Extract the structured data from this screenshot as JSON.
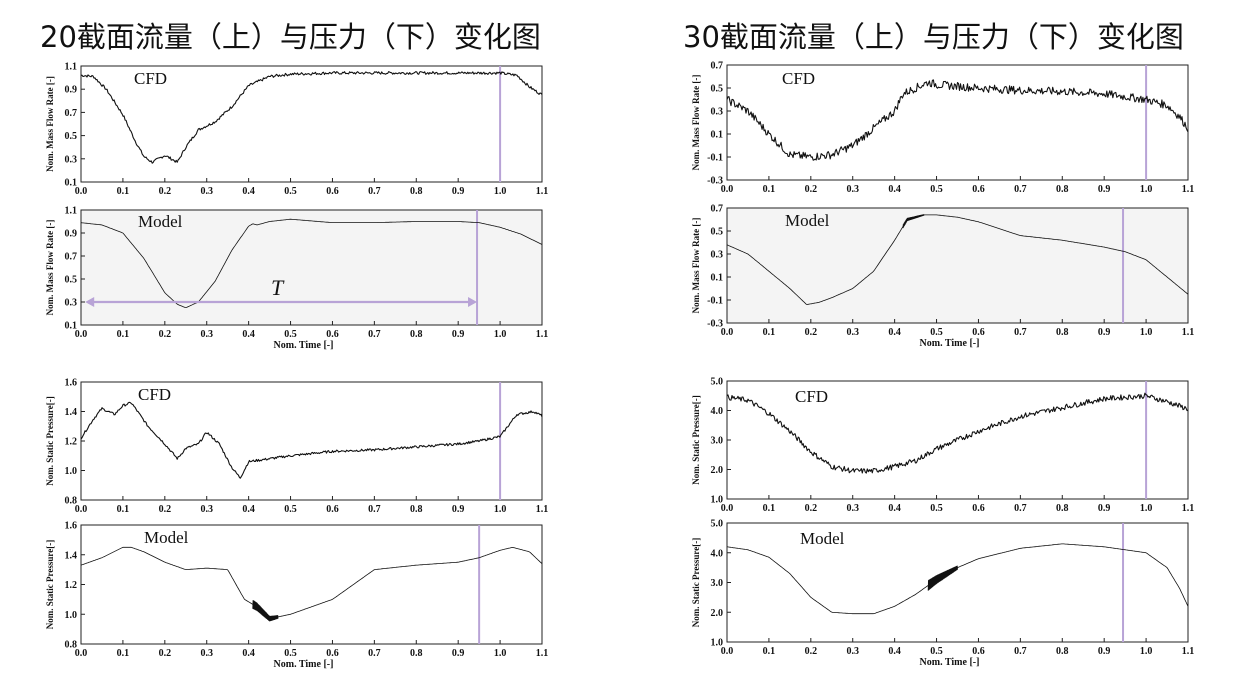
{
  "titles": {
    "left": "20截面流量（上）与压力（下）变化图",
    "right": "30截面流量（上）与压力（下）变化图"
  },
  "colors": {
    "marker": "#b8a3d6",
    "shade": "#f4f4f4",
    "line": "#111111"
  },
  "chart_data": [
    {
      "id": "s20-flow-cfd",
      "type": "line",
      "label": "CFD",
      "ylabel": "Nom. Mass Flow Rate [-]",
      "xlabel": "",
      "xlim": [
        0.0,
        1.1
      ],
      "ylim": [
        0.1,
        1.1
      ],
      "shaded": false,
      "xticks": [
        "0.0",
        "0.1",
        "0.2",
        "0.3",
        "0.4",
        "0.5",
        "0.6",
        "0.7",
        "0.8",
        "0.9",
        "1.0",
        "1.1"
      ],
      "yticks": [
        "0.1",
        "0.3",
        "0.5",
        "0.7",
        "0.9",
        "1.1"
      ],
      "marker_x": 1.0,
      "noise": 0.012,
      "x": [
        0,
        0.03,
        0.06,
        0.1,
        0.13,
        0.15,
        0.17,
        0.2,
        0.23,
        0.25,
        0.28,
        0.32,
        0.36,
        0.4,
        0.45,
        0.5,
        0.6,
        0.7,
        0.8,
        0.9,
        1.0,
        1.04,
        1.07,
        1.1
      ],
      "y": [
        1.02,
        1.01,
        0.9,
        0.68,
        0.45,
        0.32,
        0.27,
        0.33,
        0.27,
        0.4,
        0.55,
        0.62,
        0.75,
        0.93,
        1.01,
        1.03,
        1.04,
        1.04,
        1.04,
        1.04,
        1.04,
        1.02,
        0.92,
        0.85
      ]
    },
    {
      "id": "s20-flow-model",
      "type": "line",
      "label": "Model",
      "ylabel": "Nom. Mass Flow Rate [-]",
      "xlabel": "Nom. Time [-]",
      "xlim": [
        0.0,
        1.1
      ],
      "ylim": [
        0.1,
        1.1
      ],
      "shaded": true,
      "xticks": [
        "0.0",
        "0.1",
        "0.2",
        "0.3",
        "0.4",
        "0.5",
        "0.6",
        "0.7",
        "0.8",
        "0.9",
        "1.0",
        "1.1"
      ],
      "yticks": [
        "0.1",
        "0.3",
        "0.5",
        "0.7",
        "0.9",
        "1.1"
      ],
      "marker_x": 0.945,
      "period_label": "T",
      "period_arrow": [
        0.01,
        0.945
      ],
      "period_y": 0.3,
      "noise": 0,
      "x": [
        0,
        0.05,
        0.1,
        0.15,
        0.2,
        0.23,
        0.25,
        0.28,
        0.32,
        0.36,
        0.4,
        0.41,
        0.42,
        0.45,
        0.5,
        0.6,
        0.7,
        0.8,
        0.9,
        0.95,
        1.0,
        1.05,
        1.1
      ],
      "y": [
        0.99,
        0.97,
        0.9,
        0.68,
        0.38,
        0.28,
        0.25,
        0.3,
        0.48,
        0.75,
        0.96,
        0.98,
        0.97,
        1.0,
        1.02,
        0.99,
        0.99,
        1.0,
        1.0,
        0.99,
        0.95,
        0.89,
        0.8
      ]
    },
    {
      "id": "s20-pressure-cfd",
      "type": "line",
      "label": "CFD",
      "ylabel": "Nom. Static Pressure[-]",
      "xlabel": "",
      "xlim": [
        0.0,
        1.1
      ],
      "ylim": [
        0.8,
        1.6
      ],
      "shaded": false,
      "xticks": [
        "0.0",
        "0.1",
        "0.2",
        "0.3",
        "0.4",
        "0.5",
        "0.6",
        "0.7",
        "0.8",
        "0.9",
        "1.0",
        "1.1"
      ],
      "yticks": [
        "0.8",
        "1.0",
        "1.2",
        "1.4",
        "1.6"
      ],
      "marker_x": 1.0,
      "noise": 0.008,
      "x": [
        0,
        0.03,
        0.05,
        0.08,
        0.1,
        0.12,
        0.14,
        0.16,
        0.2,
        0.23,
        0.25,
        0.28,
        0.3,
        0.33,
        0.36,
        0.38,
        0.4,
        0.45,
        0.5,
        0.6,
        0.7,
        0.8,
        0.9,
        0.95,
        1.0,
        1.04,
        1.08,
        1.1
      ],
      "y": [
        1.22,
        1.35,
        1.42,
        1.38,
        1.44,
        1.46,
        1.38,
        1.3,
        1.18,
        1.08,
        1.15,
        1.18,
        1.26,
        1.18,
        1.02,
        0.95,
        1.06,
        1.08,
        1.1,
        1.13,
        1.14,
        1.16,
        1.18,
        1.2,
        1.23,
        1.38,
        1.4,
        1.37
      ]
    },
    {
      "id": "s20-pressure-model",
      "type": "line",
      "label": "Model",
      "ylabel": "Nom. Static Pressure[-]",
      "xlabel": "Nom. Time [-]",
      "xlim": [
        0.0,
        1.1
      ],
      "ylim": [
        0.8,
        1.6
      ],
      "shaded": false,
      "xticks": [
        "0.0",
        "0.1",
        "0.2",
        "0.3",
        "0.4",
        "0.5",
        "0.6",
        "0.7",
        "0.8",
        "0.9",
        "1.0",
        "1.1"
      ],
      "yticks": [
        "0.8",
        "1.0",
        "1.2",
        "1.4",
        "1.6"
      ],
      "marker_x": 0.95,
      "noise": 0,
      "osc": [
        0.41,
        0.47,
        0.06
      ],
      "x": [
        0,
        0.05,
        0.1,
        0.12,
        0.15,
        0.2,
        0.25,
        0.3,
        0.35,
        0.37,
        0.39,
        0.42,
        0.45,
        0.5,
        0.55,
        0.6,
        0.7,
        0.8,
        0.9,
        0.95,
        1.0,
        1.03,
        1.07,
        1.1
      ],
      "y": [
        1.33,
        1.38,
        1.45,
        1.45,
        1.42,
        1.35,
        1.3,
        1.31,
        1.3,
        1.2,
        1.1,
        1.05,
        0.97,
        1.0,
        1.05,
        1.1,
        1.3,
        1.33,
        1.35,
        1.38,
        1.43,
        1.45,
        1.42,
        1.34
      ]
    },
    {
      "id": "s30-flow-cfd",
      "type": "line",
      "label": "CFD",
      "ylabel": "Nom. Mass Flow Rate [-]",
      "xlabel": "",
      "xlim": [
        0.0,
        1.1
      ],
      "ylim": [
        -0.3,
        0.7
      ],
      "shaded": false,
      "xticks": [
        "0.0",
        "0.1",
        "0.2",
        "0.3",
        "0.4",
        "0.5",
        "0.6",
        "0.7",
        "0.8",
        "0.9",
        "1.0",
        "1.1"
      ],
      "yticks": [
        "-0.3",
        "-0.1",
        "0.1",
        "0.3",
        "0.5",
        "0.7"
      ],
      "marker_x": 1.0,
      "noise": 0.035,
      "x": [
        0,
        0.05,
        0.1,
        0.15,
        0.2,
        0.25,
        0.3,
        0.35,
        0.4,
        0.42,
        0.45,
        0.48,
        0.5,
        0.6,
        0.7,
        0.8,
        0.9,
        1.0,
        1.05,
        1.08,
        1.1
      ],
      "y": [
        0.4,
        0.3,
        0.1,
        -0.08,
        -0.1,
        -0.08,
        0.0,
        0.15,
        0.3,
        0.45,
        0.5,
        0.55,
        0.53,
        0.5,
        0.48,
        0.47,
        0.45,
        0.4,
        0.35,
        0.25,
        0.15
      ]
    },
    {
      "id": "s30-flow-model",
      "type": "line",
      "label": "Model",
      "ylabel": "Nom. Mass Flow Rate [-]",
      "xlabel": "Nom. Time [-]",
      "xlim": [
        0.0,
        1.1
      ],
      "ylim": [
        -0.3,
        0.7
      ],
      "shaded": true,
      "xticks": [
        "0.0",
        "0.1",
        "0.2",
        "0.3",
        "0.4",
        "0.5",
        "0.6",
        "0.7",
        "0.8",
        "0.9",
        "1.0",
        "1.1"
      ],
      "yticks": [
        "-0.3",
        "-0.1",
        "0.1",
        "0.3",
        "0.5",
        "0.7"
      ],
      "marker_x": 0.945,
      "noise": 0,
      "osc": [
        0.42,
        0.47,
        0.03
      ],
      "x": [
        0,
        0.05,
        0.1,
        0.15,
        0.19,
        0.22,
        0.25,
        0.3,
        0.35,
        0.4,
        0.43,
        0.47,
        0.5,
        0.55,
        0.6,
        0.7,
        0.8,
        0.9,
        0.95,
        1.0,
        1.05,
        1.1
      ],
      "y": [
        0.38,
        0.3,
        0.15,
        0.0,
        -0.14,
        -0.12,
        -0.08,
        0.0,
        0.15,
        0.42,
        0.6,
        0.64,
        0.64,
        0.62,
        0.58,
        0.46,
        0.42,
        0.36,
        0.32,
        0.25,
        0.1,
        -0.05
      ]
    },
    {
      "id": "s30-pressure-cfd",
      "type": "line",
      "label": "CFD",
      "ylabel": "Nom. Static Pressure[-]",
      "xlabel": "",
      "xlim": [
        0.0,
        1.1
      ],
      "ylim": [
        1.0,
        5.0
      ],
      "shaded": false,
      "xticks": [
        "0.0",
        "0.1",
        "0.2",
        "0.3",
        "0.4",
        "0.5",
        "0.6",
        "0.7",
        "0.8",
        "0.9",
        "1.0",
        "1.1"
      ],
      "yticks": [
        "1.0",
        "2.0",
        "3.0",
        "4.0",
        "5.0"
      ],
      "marker_x": 1.0,
      "noise": 0.09,
      "x": [
        0,
        0.05,
        0.1,
        0.15,
        0.2,
        0.25,
        0.3,
        0.35,
        0.4,
        0.45,
        0.5,
        0.6,
        0.7,
        0.8,
        0.9,
        1.0,
        1.05,
        1.1
      ],
      "y": [
        4.45,
        4.35,
        3.9,
        3.3,
        2.6,
        2.1,
        1.95,
        1.95,
        2.1,
        2.3,
        2.7,
        3.3,
        3.8,
        4.1,
        4.4,
        4.5,
        4.3,
        4.05
      ]
    },
    {
      "id": "s30-pressure-model",
      "type": "line",
      "label": "Model",
      "ylabel": "Nom. Static Pressure[-]",
      "xlabel": "Nom. Time [-]",
      "xlim": [
        0.0,
        1.1
      ],
      "ylim": [
        1.0,
        5.0
      ],
      "shaded": false,
      "xticks": [
        "0.0",
        "0.1",
        "0.2",
        "0.3",
        "0.4",
        "0.5",
        "0.6",
        "0.7",
        "0.8",
        "0.9",
        "1.0",
        "1.1"
      ],
      "yticks": [
        "1.0",
        "2.0",
        "3.0",
        "4.0",
        "5.0"
      ],
      "marker_x": 0.945,
      "noise": 0,
      "osc": [
        0.48,
        0.55,
        0.35
      ],
      "x": [
        0,
        0.05,
        0.1,
        0.15,
        0.2,
        0.25,
        0.3,
        0.35,
        0.4,
        0.45,
        0.5,
        0.55,
        0.6,
        0.7,
        0.8,
        0.9,
        1.0,
        1.05,
        1.08,
        1.1
      ],
      "y": [
        4.2,
        4.1,
        3.85,
        3.3,
        2.5,
        2.0,
        1.95,
        1.95,
        2.2,
        2.6,
        3.1,
        3.5,
        3.8,
        4.15,
        4.3,
        4.2,
        4.0,
        3.5,
        2.8,
        2.2
      ]
    }
  ]
}
